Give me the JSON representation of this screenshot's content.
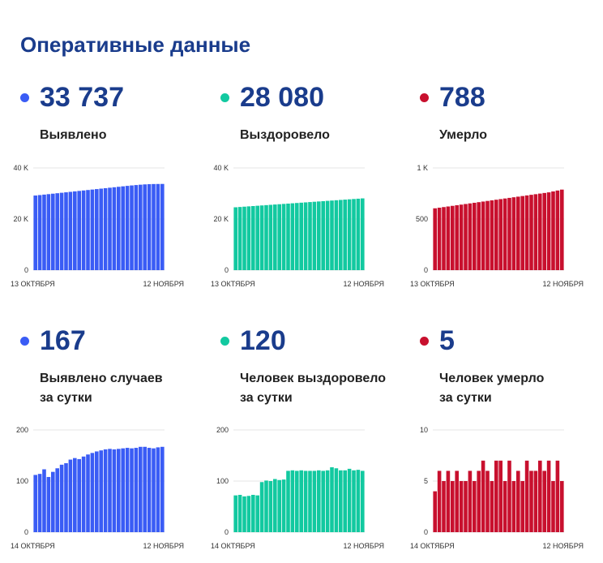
{
  "page": {
    "title": "Оперативные данные"
  },
  "panels": [
    {
      "value": "33 737",
      "label_lines": [
        "Выявлено"
      ],
      "color": "#3a5cf5",
      "chart_data": {
        "type": "bar",
        "y_ticks": [
          "40 K",
          "20 K",
          "0"
        ],
        "y_tick_values": [
          40000,
          20000,
          0
        ],
        "ylim": [
          0,
          40000
        ],
        "x_start_label": "13 ОКТЯБРЯ",
        "x_end_label": "12 НОЯБРЯ",
        "values": [
          29200,
          29380,
          29560,
          29740,
          29920,
          30100,
          30280,
          30460,
          30640,
          30820,
          31000,
          31180,
          31360,
          31540,
          31720,
          31900,
          32080,
          32260,
          32440,
          32620,
          32800,
          32980,
          33150,
          33300,
          33440,
          33560,
          33640,
          33700,
          33720,
          33737
        ]
      }
    },
    {
      "value": "28 080",
      "label_lines": [
        "Выздоровело"
      ],
      "color": "#12c9a0",
      "chart_data": {
        "type": "bar",
        "y_ticks": [
          "40 K",
          "20 K",
          "0"
        ],
        "y_tick_values": [
          40000,
          20000,
          0
        ],
        "ylim": [
          0,
          40000
        ],
        "x_start_label": "13 ОКТЯБРЯ",
        "x_end_label": "12 НОЯБРЯ",
        "values": [
          24600,
          24720,
          24840,
          24960,
          25080,
          25200,
          25320,
          25440,
          25560,
          25680,
          25800,
          25920,
          26040,
          26160,
          26280,
          26400,
          26520,
          26640,
          26760,
          26880,
          27000,
          27120,
          27240,
          27360,
          27480,
          27600,
          27720,
          27840,
          27960,
          28080
        ]
      }
    },
    {
      "value": "788",
      "label_lines": [
        "Умерло"
      ],
      "color": "#c8102e",
      "chart_data": {
        "type": "bar",
        "y_ticks": [
          "1 K",
          "500",
          "0"
        ],
        "y_tick_values": [
          1000,
          500,
          0
        ],
        "ylim": [
          0,
          1000
        ],
        "x_start_label": "13 ОКТЯБРЯ",
        "x_end_label": "12 НОЯБРЯ",
        "values": [
          605,
          611,
          617,
          623,
          629,
          635,
          641,
          647,
          653,
          659,
          665,
          671,
          677,
          683,
          689,
          695,
          701,
          707,
          713,
          719,
          725,
          731,
          737,
          743,
          749,
          755,
          761,
          770,
          779,
          788
        ]
      }
    },
    {
      "value": "167",
      "label_lines": [
        "Выявлено случаев",
        "за сутки"
      ],
      "color": "#3a5cf5",
      "chart_data": {
        "type": "bar",
        "y_ticks": [
          "200",
          "100",
          "0"
        ],
        "y_tick_values": [
          200,
          100,
          0
        ],
        "ylim": [
          0,
          200
        ],
        "x_start_label": "14 ОКТЯБРЯ",
        "x_end_label": "12 НОЯБРЯ",
        "values": [
          112,
          114,
          123,
          108,
          118,
          125,
          132,
          135,
          142,
          145,
          143,
          148,
          152,
          155,
          158,
          160,
          162,
          163,
          162,
          163,
          164,
          165,
          164,
          165,
          167,
          167,
          165,
          164,
          166,
          167
        ]
      }
    },
    {
      "value": "120",
      "label_lines": [
        "Человек выздоровело",
        "за сутки"
      ],
      "color": "#12c9a0",
      "chart_data": {
        "type": "bar",
        "y_ticks": [
          "200",
          "100",
          "0"
        ],
        "y_tick_values": [
          200,
          100,
          0
        ],
        "ylim": [
          0,
          200
        ],
        "x_start_label": "14 ОКТЯБРЯ",
        "x_end_label": "12 НОЯБРЯ",
        "values": [
          72,
          73,
          70,
          71,
          73,
          72,
          98,
          101,
          100,
          104,
          102,
          103,
          120,
          121,
          120,
          121,
          120,
          120,
          120,
          121,
          120,
          121,
          127,
          125,
          121,
          121,
          124,
          121,
          122,
          120
        ]
      }
    },
    {
      "value": "5",
      "label_lines": [
        "Человек умерло",
        "за сутки"
      ],
      "color": "#c8102e",
      "chart_data": {
        "type": "bar",
        "y_ticks": [
          "10",
          "5",
          "0"
        ],
        "y_tick_values": [
          10,
          5,
          0
        ],
        "ylim": [
          0,
          10
        ],
        "x_start_label": "14 ОКТЯБРЯ",
        "x_end_label": "12 НОЯБРЯ",
        "values": [
          4,
          6,
          5,
          6,
          5,
          6,
          5,
          5,
          6,
          5,
          6,
          7,
          6,
          5,
          7,
          7,
          5,
          7,
          5,
          6,
          5,
          7,
          6,
          6,
          7,
          6,
          7,
          5,
          7,
          5
        ]
      }
    }
  ]
}
